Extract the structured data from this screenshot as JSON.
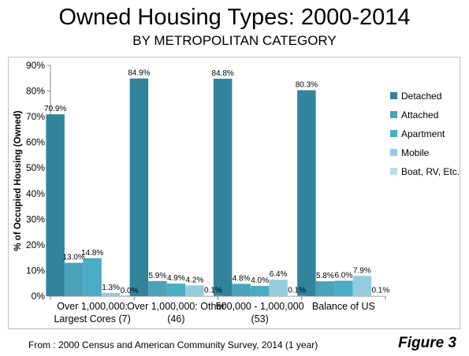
{
  "title": "Owned Housing Types: 2000-2014",
  "subtitle": "BY METROPOLITAN CATEGORY",
  "footer": "From : 2000 Census and American Community Survey, 2014 (1 year)",
  "figure_label": "Figure 3",
  "chart_data": {
    "type": "bar",
    "ylabel": "% of Occupied Housing (Owned)",
    "xlabel": "",
    "ylim": [
      0,
      90
    ],
    "yticks": [
      "0%",
      "10%",
      "20%",
      "30%",
      "40%",
      "50%",
      "60%",
      "70%",
      "80%",
      "90%"
    ],
    "grid": false,
    "legend_position": "right",
    "categories": [
      [
        "Over 1,000,000:",
        "Largest Cores (7)"
      ],
      [
        "Over 1,000,000: Other",
        "(46)"
      ],
      [
        "500,000 - 1,000,000",
        "(53)"
      ],
      [
        "Balance of US"
      ]
    ],
    "series": [
      {
        "name": "Detached",
        "color": "#31849b",
        "values": [
          70.9,
          84.9,
          84.8,
          80.3
        ],
        "labels": [
          "70.9%",
          "84.9%",
          "84.8%",
          "80.3%"
        ]
      },
      {
        "name": "Attached",
        "color": "#4aa3b8",
        "values": [
          13.0,
          5.9,
          4.8,
          5.8
        ],
        "labels": [
          "13.0%",
          "5.9%",
          "4.8%",
          "5.8%"
        ]
      },
      {
        "name": "Apartment",
        "color": "#4bacc6",
        "values": [
          14.8,
          4.9,
          4.0,
          6.0
        ],
        "labels": [
          "14.8%",
          "4.9%",
          "4.0%",
          "6.0%"
        ]
      },
      {
        "name": "Mobile",
        "color": "#93cddd",
        "values": [
          1.3,
          4.2,
          6.4,
          7.9
        ],
        "labels": [
          "1.3%",
          "4.2%",
          "6.4%",
          "7.9%"
        ]
      },
      {
        "name": "Boat, RV, Etc.",
        "color": "#b7dde8",
        "values": [
          0.0,
          0.1,
          0.1,
          0.1
        ],
        "labels": [
          "0.0%",
          "0.1%",
          "0.1%",
          "0.1%"
        ]
      }
    ]
  }
}
